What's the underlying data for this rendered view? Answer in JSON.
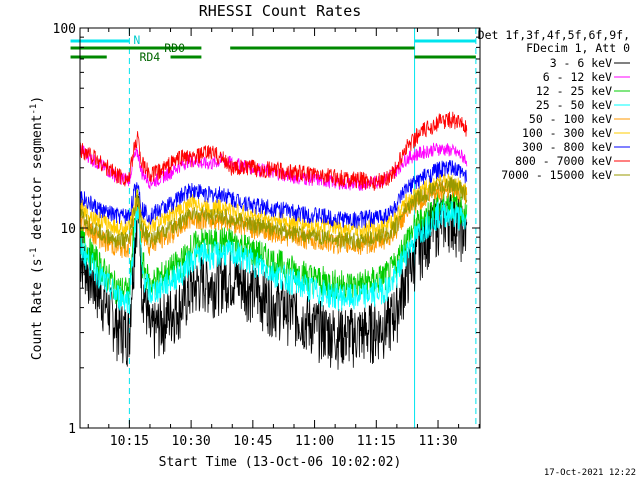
{
  "chart_data": {
    "type": "line",
    "title": "RHESSI Count Rates",
    "xlabel": "Start Time (13-Oct-06 10:02:02)",
    "ylabel_main": "Count Rate (s",
    "ylabel_sup1": "-1",
    "ylabel_mid": " detector segment",
    "ylabel_sup2": "-1",
    "ylabel_end": ")",
    "y_scale": "log",
    "ylim": [
      1,
      100
    ],
    "xlim_minutes": [
      10.05,
      11.67
    ],
    "y_ticks": [
      {
        "value": 1,
        "label": "1"
      },
      {
        "value": 10,
        "label": "10"
      },
      {
        "value": 100,
        "label": "100"
      }
    ],
    "x_ticks": [
      {
        "minute": 15,
        "label": "10:15"
      },
      {
        "minute": 30,
        "label": "10:30"
      },
      {
        "minute": 45,
        "label": "10:45"
      },
      {
        "minute": 60,
        "label": "11:00"
      },
      {
        "minute": 75,
        "label": "11:15"
      },
      {
        "minute": 90,
        "label": "11:30"
      }
    ],
    "legend": {
      "header": [
        "Det 1f,3f,4f,5f,6f,9f,",
        "FDecim 1, Att 0"
      ],
      "position": "right"
    },
    "x_minutes": [
      3,
      6,
      9,
      12,
      15,
      16,
      17,
      18,
      20,
      22,
      25,
      28,
      30,
      33,
      35,
      38,
      40,
      43,
      45,
      50,
      55,
      60,
      65,
      70,
      75,
      78,
      80,
      82,
      85,
      88,
      90,
      93,
      95,
      97
    ],
    "series": [
      {
        "name": "3 - 6 keV",
        "color": "#000000",
        "values": [
          7.5,
          5.5,
          4.3,
          3.3,
          3.0,
          7.0,
          13.5,
          5.5,
          3.0,
          3.3,
          3.8,
          4.3,
          5.0,
          5.6,
          5.4,
          5.7,
          5.8,
          5.3,
          5.0,
          4.3,
          3.8,
          3.3,
          3.0,
          3.0,
          3.2,
          3.4,
          4.0,
          5.5,
          7.8,
          9.8,
          11.0,
          11.5,
          10.6,
          9.2
        ]
      },
      {
        "name": "6 - 12 keV",
        "color": "#ff00ff",
        "values": [
          25,
          22,
          20,
          18,
          17.5,
          22,
          24,
          19,
          17,
          17.5,
          19,
          21,
          22,
          21,
          21,
          22,
          21,
          20.5,
          20,
          19,
          18,
          17.5,
          17,
          16.5,
          17,
          18,
          19.5,
          22,
          23.5,
          24.5,
          25,
          24.5,
          23.5,
          22
        ]
      },
      {
        "name": "12 - 25 keV",
        "color": "#00cc00",
        "values": [
          9.0,
          7.3,
          6.0,
          5.0,
          4.8,
          9.0,
          14.0,
          6.8,
          5.2,
          5.6,
          6.2,
          6.9,
          8.0,
          8.6,
          8.4,
          8.7,
          8.5,
          8.1,
          7.7,
          6.8,
          6.2,
          5.6,
          5.3,
          5.2,
          5.5,
          5.9,
          6.7,
          8.5,
          10.5,
          12.0,
          13.0,
          13.4,
          12.8,
          11.8
        ]
      },
      {
        "name": "25 - 50 keV",
        "color": "#00ffff",
        "values": [
          8.0,
          6.5,
          5.4,
          4.6,
          4.4,
          8.2,
          13.0,
          6.1,
          4.7,
          5.0,
          5.5,
          6.1,
          7.0,
          7.5,
          7.3,
          7.6,
          7.5,
          7.1,
          6.8,
          6.0,
          5.4,
          4.9,
          4.6,
          4.5,
          4.8,
          5.1,
          5.8,
          7.5,
          9.3,
          10.8,
          11.7,
          12.0,
          11.4,
          10.5
        ]
      },
      {
        "name": "50 - 100 keV",
        "color": "#ff9900",
        "values": [
          11.0,
          9.5,
          8.6,
          8.0,
          8.0,
          11.0,
          14.0,
          9.4,
          8.2,
          8.7,
          9.3,
          10.3,
          11.3,
          11.1,
          10.9,
          11.1,
          10.7,
          10.3,
          10.0,
          9.5,
          9.0,
          8.7,
          8.4,
          8.2,
          8.5,
          9.0,
          10.0,
          11.8,
          13.5,
          14.8,
          15.6,
          16.0,
          15.3,
          14.3
        ]
      },
      {
        "name": "100 - 300 keV",
        "color": "#ffcc00",
        "values": [
          13.0,
          11.5,
          10.6,
          10.0,
          10.0,
          12.5,
          15.0,
          11.2,
          10.2,
          10.8,
          11.5,
          12.6,
          13.5,
          13.0,
          12.6,
          12.8,
          12.2,
          11.8,
          11.5,
          11.0,
          10.6,
          10.2,
          10.0,
          9.8,
          10.0,
          10.5,
          11.5,
          13.3,
          15.0,
          16.3,
          17.0,
          17.3,
          16.6,
          15.6
        ]
      },
      {
        "name": "300 - 800 keV",
        "color": "#0000ff",
        "values": [
          14.5,
          13.0,
          12.0,
          11.5,
          11.5,
          14.5,
          17.0,
          12.5,
          11.5,
          12.2,
          13.2,
          14.6,
          15.7,
          15.0,
          14.6,
          14.8,
          14.0,
          13.5,
          13.0,
          12.6,
          12.0,
          11.6,
          11.2,
          11.0,
          11.3,
          11.8,
          13.0,
          15.3,
          17.3,
          18.6,
          19.6,
          20.0,
          19.2,
          18.0
        ]
      },
      {
        "name": "800 - 7000 keV",
        "color": "#ff0000",
        "values": [
          25,
          23,
          20.5,
          18.5,
          17.5,
          24,
          29,
          21,
          18.5,
          19,
          21,
          23,
          22,
          23.5,
          24,
          22,
          20,
          20,
          20,
          19.5,
          19,
          18.5,
          18,
          17.5,
          17,
          18,
          20,
          25,
          29,
          32,
          34,
          35,
          34,
          31
        ]
      },
      {
        "name": "7000 - 15000 keV",
        "color": "#999900",
        "values": [
          11.5,
          10.0,
          9.2,
          8.7,
          8.7,
          11.5,
          14.5,
          9.9,
          8.8,
          9.3,
          9.9,
          11.0,
          11.8,
          11.6,
          11.3,
          11.5,
          11.0,
          10.7,
          10.4,
          9.9,
          9.4,
          9.1,
          8.8,
          8.6,
          8.9,
          9.4,
          10.4,
          12.3,
          14.0,
          15.3,
          16.1,
          16.5,
          15.8,
          14.8
        ]
      }
    ],
    "annotations": {
      "n_label": "N",
      "rd0_label": "RD0",
      "rd4_label": "RD4",
      "n_marker_minute": 15,
      "n_bar_minutes": [
        0.7,
        15
      ],
      "rd0_left_minutes": [
        0.7,
        32.5
      ],
      "rd0_right_minutes": [
        39.5,
        84.3
      ],
      "rd0_far_right_minutes": [
        84.3,
        99.2
      ],
      "rd4_left_minutes": [
        0.7,
        9.5
      ],
      "rd4_mid_minutes": [
        25,
        32.5
      ],
      "rd4_right_minutes": [
        84.3,
        99.2
      ],
      "n_right_minutes": [
        84.3,
        99.2
      ],
      "solid_vline_minutes": [
        84.3
      ],
      "dashed_vline_minutes": [
        15,
        99.2
      ]
    },
    "timestamp": "17-Oct-2021 12:22",
    "background": "#ffffff",
    "axis_color": "#000000",
    "grid": false
  }
}
